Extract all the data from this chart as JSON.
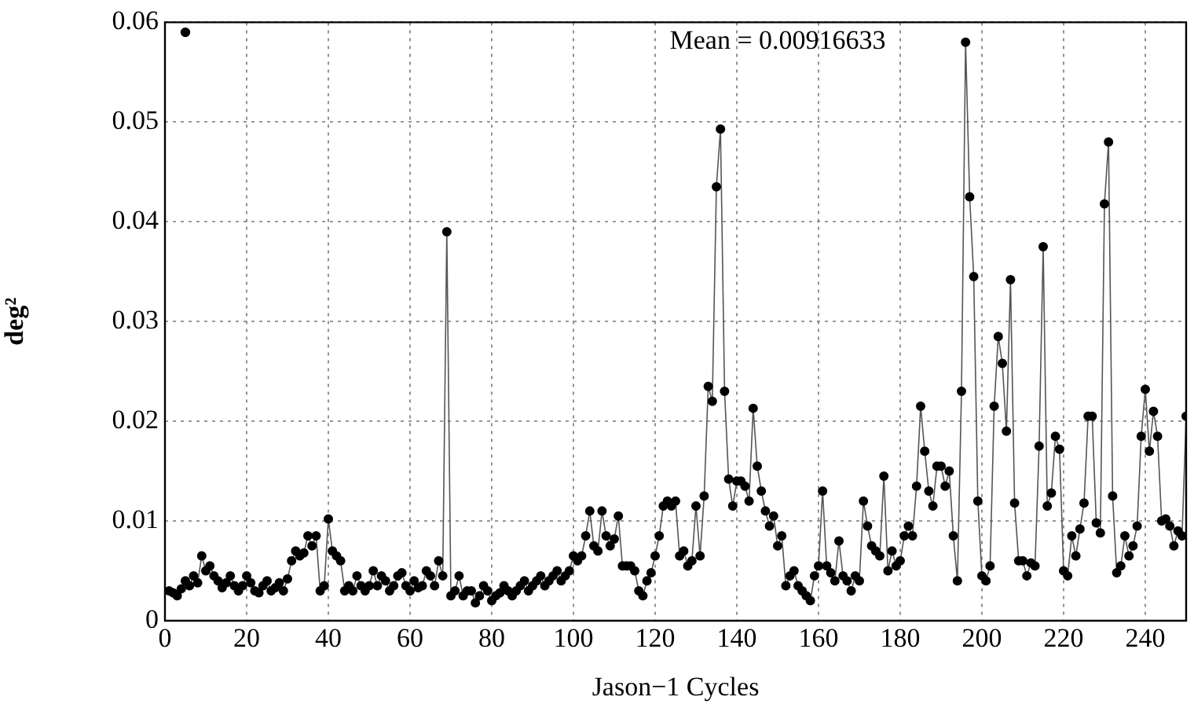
{
  "chart_data": {
    "type": "line",
    "xlabel": "Jason−1 Cycles",
    "ylabel": "deg²",
    "annotations": [
      "Mean = 0.00916633"
    ],
    "xlim": [
      0,
      250
    ],
    "xticks": [
      0,
      20,
      40,
      60,
      80,
      100,
      120,
      140,
      160,
      180,
      200,
      220,
      240
    ],
    "ylim": [
      0,
      0.06
    ],
    "yticks": [
      0,
      0.01,
      0.02,
      0.03,
      0.04,
      0.05,
      0.06
    ],
    "grid": true,
    "legend": false,
    "marker": "circle",
    "line_style": "solid",
    "series": [
      {
        "type": "line",
        "color": "#000000",
        "x": [
          1,
          2,
          3,
          4,
          5,
          6,
          7,
          8,
          9,
          10,
          11,
          12,
          13,
          14,
          15,
          16,
          17,
          18,
          19,
          20,
          21,
          22,
          23,
          24,
          25,
          26,
          27,
          28,
          29,
          30,
          31,
          32,
          33,
          34,
          35,
          36,
          37,
          38,
          39,
          40,
          41,
          42,
          43,
          44,
          45,
          46,
          47,
          48,
          49,
          50,
          51,
          52,
          53,
          54,
          55,
          56,
          57,
          58,
          59,
          60,
          61,
          62,
          63,
          64,
          65,
          66,
          67,
          68,
          69,
          70,
          71,
          72,
          73,
          74,
          75,
          76,
          77,
          78,
          79,
          80,
          81,
          82,
          83,
          84,
          85,
          86,
          87,
          88,
          89,
          90,
          91,
          92,
          93,
          94,
          95,
          96,
          97,
          98,
          99,
          100,
          101,
          102,
          103,
          104,
          105,
          106,
          107,
          108,
          109,
          110,
          111,
          112,
          113,
          114,
          115,
          116,
          117,
          118,
          119,
          120,
          121,
          122,
          123,
          124,
          125,
          126,
          127,
          128,
          129,
          130,
          131,
          132,
          133,
          134,
          135,
          136,
          137,
          138,
          139,
          140,
          141,
          142,
          143,
          144,
          145,
          146,
          147,
          148,
          149,
          150,
          151,
          152,
          153,
          154,
          155,
          156,
          157,
          158,
          159,
          160,
          161,
          162,
          163,
          164,
          165,
          166,
          167,
          168,
          169,
          170,
          171,
          172,
          173,
          174,
          175,
          176,
          177,
          178,
          179,
          180,
          181,
          182,
          183,
          184,
          185,
          186,
          187,
          188,
          189,
          190,
          191,
          192,
          193,
          194,
          195,
          196,
          197,
          198,
          199,
          200,
          201,
          202,
          203,
          204,
          205,
          206,
          207,
          208,
          209,
          210,
          211,
          212,
          213,
          214,
          215,
          216,
          217,
          218,
          219,
          220,
          221,
          222,
          223,
          224,
          225,
          226,
          227,
          228,
          229,
          230,
          231,
          232,
          233,
          234,
          235,
          236,
          237,
          238,
          239,
          240,
          241,
          242,
          243,
          244,
          245,
          246,
          247,
          248,
          249,
          250
        ],
        "values": [
          0.003,
          0.0028,
          0.0025,
          0.0032,
          0.004,
          0.0035,
          0.0045,
          0.0038,
          0.0065,
          0.005,
          0.0055,
          0.0045,
          0.004,
          0.0033,
          0.0038,
          0.0045,
          0.0035,
          0.003,
          0.0035,
          0.0045,
          0.0038,
          0.003,
          0.0028,
          0.0035,
          0.004,
          0.003,
          0.0033,
          0.0038,
          0.003,
          0.0042,
          0.006,
          0.007,
          0.0065,
          0.0068,
          0.0085,
          0.0075,
          0.0085,
          0.003,
          0.0035,
          0.0102,
          0.007,
          0.0065,
          0.006,
          0.003,
          0.0035,
          0.003,
          0.0045,
          0.0035,
          0.003,
          0.0035,
          0.005,
          0.0035,
          0.0045,
          0.004,
          0.003,
          0.0035,
          0.0045,
          0.0048,
          0.0035,
          0.003,
          0.004,
          0.0033,
          0.0035,
          0.005,
          0.0045,
          0.0035,
          0.006,
          0.0045,
          0.039,
          0.0025,
          0.003,
          0.0045,
          0.0025,
          0.003,
          0.003,
          0.0018,
          0.0025,
          0.0035,
          0.003,
          0.002,
          0.0025,
          0.0028,
          0.0035,
          0.003,
          0.0025,
          0.003,
          0.0035,
          0.004,
          0.003,
          0.0035,
          0.004,
          0.0045,
          0.0035,
          0.004,
          0.0045,
          0.005,
          0.004,
          0.0045,
          0.005,
          0.0065,
          0.006,
          0.0065,
          0.0085,
          0.011,
          0.0075,
          0.007,
          0.011,
          0.0085,
          0.0075,
          0.0082,
          0.0105,
          0.0055,
          0.0055,
          0.0055,
          0.005,
          0.003,
          0.0025,
          0.004,
          0.0048,
          0.0065,
          0.0085,
          0.0115,
          0.012,
          0.0115,
          0.012,
          0.0065,
          0.007,
          0.0055,
          0.006,
          0.0115,
          0.0065,
          0.0125,
          0.0235,
          0.022,
          0.0435,
          0.0493,
          0.023,
          0.0142,
          0.0115,
          0.014,
          0.014,
          0.0135,
          0.012,
          0.0213,
          0.0155,
          0.013,
          0.011,
          0.0095,
          0.0105,
          0.0075,
          0.0085,
          0.0035,
          0.0045,
          0.005,
          0.0035,
          0.003,
          0.0025,
          0.002,
          0.0045,
          0.0055,
          0.013,
          0.0055,
          0.0048,
          0.004,
          0.008,
          0.0045,
          0.004,
          0.003,
          0.0045,
          0.004,
          0.012,
          0.0095,
          0.0075,
          0.007,
          0.0065,
          0.0145,
          0.005,
          0.007,
          0.0055,
          0.006,
          0.0085,
          0.0095,
          0.0085,
          0.0135,
          0.0215,
          0.017,
          0.013,
          0.0115,
          0.0155,
          0.0155,
          0.0135,
          0.015,
          0.0085,
          0.004,
          0.023,
          0.058,
          0.0425,
          0.0345,
          0.012,
          0.0045,
          0.004,
          0.0055,
          0.0215,
          0.0285,
          0.0258,
          0.019,
          0.0342,
          0.0118,
          0.006,
          0.006,
          0.0045,
          0.0058,
          0.0055,
          0.0175,
          0.0375,
          0.0115,
          0.0128,
          0.0185,
          0.0172,
          0.005,
          0.0045,
          0.0085,
          0.0065,
          0.0092,
          0.0118,
          0.0205,
          0.0205,
          0.0098,
          0.0088,
          0.0418,
          0.048,
          0.0125,
          0.0048,
          0.0055,
          0.0085,
          0.0065,
          0.0075,
          0.0095,
          0.0185,
          0.0232,
          0.017,
          0.021,
          0.0185,
          0.01,
          0.0102,
          0.0095,
          0.0075,
          0.009,
          0.0085,
          0.0205
        ]
      },
      {
        "type": "scatter",
        "color": "#000000",
        "x": [
          5
        ],
        "values": [
          0.059
        ]
      }
    ]
  }
}
